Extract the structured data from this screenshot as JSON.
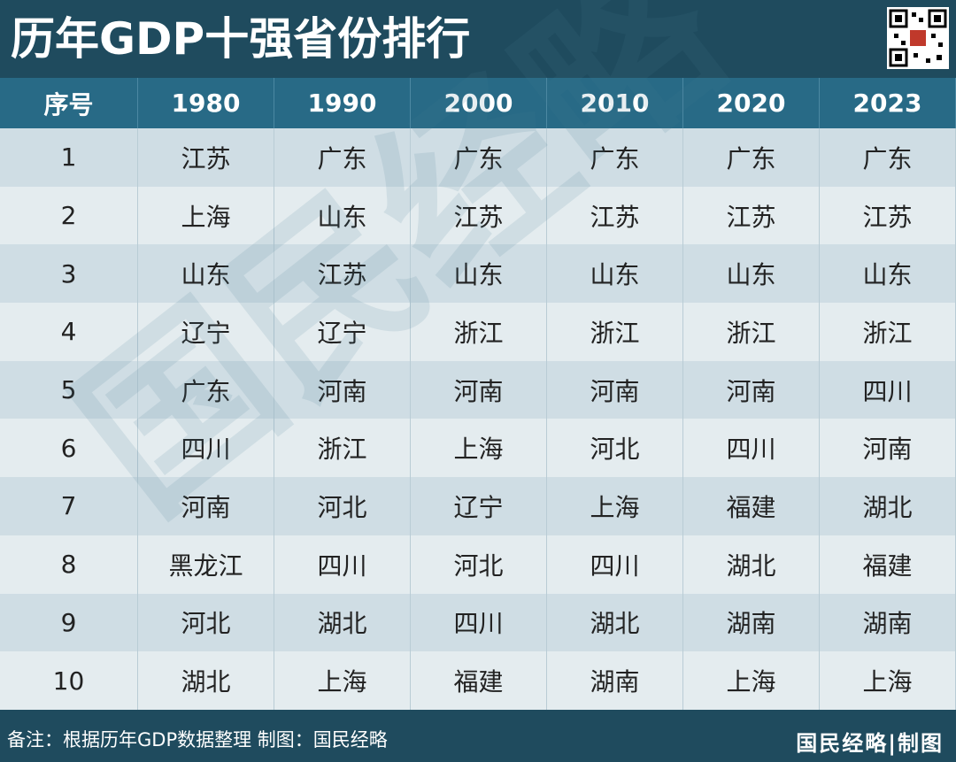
{
  "header": {
    "title": "历年GDP十强省份排行"
  },
  "table": {
    "columns": [
      "序号",
      "1980",
      "1990",
      "2000",
      "2010",
      "2020",
      "2023"
    ],
    "rows": [
      [
        1,
        "江苏",
        "广东",
        "广东",
        "广东",
        "广东",
        "广东"
      ],
      [
        2,
        "上海",
        "山东",
        "江苏",
        "江苏",
        "江苏",
        "江苏"
      ],
      [
        3,
        "山东",
        "江苏",
        "山东",
        "山东",
        "山东",
        "山东"
      ],
      [
        4,
        "辽宁",
        "辽宁",
        "浙江",
        "浙江",
        "浙江",
        "浙江"
      ],
      [
        5,
        "广东",
        "河南",
        "河南",
        "河南",
        "河南",
        "四川"
      ],
      [
        6,
        "四川",
        "浙江",
        "上海",
        "河北",
        "四川",
        "河南"
      ],
      [
        7,
        "河南",
        "河北",
        "辽宁",
        "上海",
        "福建",
        "湖北"
      ],
      [
        8,
        "黑龙江",
        "四川",
        "河北",
        "四川",
        "湖北",
        "福建"
      ],
      [
        9,
        "河北",
        "湖北",
        "四川",
        "湖北",
        "湖南",
        "湖南"
      ],
      [
        10,
        "湖北",
        "上海",
        "福建",
        "湖南",
        "上海",
        "上海"
      ]
    ]
  },
  "watermark": "国民经略",
  "footer": {
    "note": "备注：根据历年GDP数据整理 制图：国民经略",
    "brand": "国民经略|制图"
  }
}
